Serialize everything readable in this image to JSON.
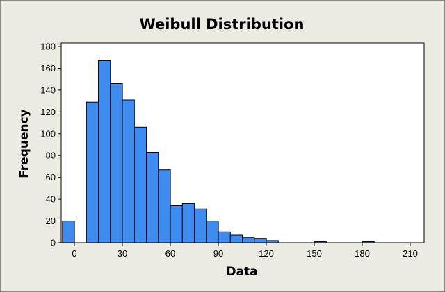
{
  "chart_data": {
    "type": "bar",
    "title": "Weibull Distribution",
    "xlabel": "Data",
    "ylabel": "Frequency",
    "bin_width": 7.5,
    "bins_start": [
      -7.5,
      0,
      7.5,
      15,
      22.5,
      30,
      37.5,
      45,
      52.5,
      60,
      67.5,
      75,
      82.5,
      90,
      97.5,
      105,
      112.5,
      120,
      127.5,
      135,
      142.5,
      150,
      157.5,
      165,
      172.5,
      180,
      187.5,
      195,
      202.5
    ],
    "values": [
      20,
      0,
      129,
      167,
      146,
      131,
      106,
      83,
      67,
      34,
      36,
      31,
      20,
      10,
      7,
      5,
      4,
      2,
      0,
      0,
      0,
      1,
      0,
      0,
      0,
      1,
      0,
      0,
      0
    ],
    "xlim": [
      -7.5,
      202.5
    ],
    "ylim": [
      0,
      180
    ],
    "x_ticks": [
      "0",
      "30",
      "60",
      "90",
      "120",
      "150",
      "180",
      "210"
    ],
    "y_ticks": [
      "0",
      "20",
      "40",
      "60",
      "80",
      "100",
      "120",
      "140",
      "160",
      "180"
    ],
    "x_tick_values": [
      0,
      30,
      60,
      90,
      120,
      150,
      180,
      210
    ],
    "y_tick_values": [
      0,
      20,
      40,
      60,
      80,
      100,
      120,
      140,
      160,
      180
    ],
    "grid": false,
    "legend": "none",
    "colors": {
      "bar": "#3f8cf0",
      "background": "#ecebe1",
      "plot_area": "#ffffff"
    }
  }
}
